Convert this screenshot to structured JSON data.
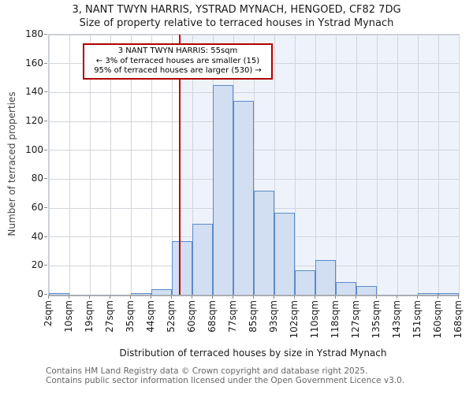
{
  "title": "3, NANT TWYN HARRIS, YSTRAD MYNACH, HENGOED, CF82 7DG",
  "subtitle": "Size of property relative to terraced houses in Ystrad Mynach",
  "annotation": {
    "line1": "3 NANT TWYN HARRIS: 55sqm",
    "line2": "← 3% of terraced houses are smaller (15)",
    "line3": "95% of terraced houses are larger (530) →"
  },
  "chart_data": {
    "type": "bar",
    "title": "3, NANT TWYN HARRIS, YSTRAD MYNACH, HENGOED, CF82 7DG",
    "subtitle": "Size of property relative to terraced houses in Ystrad Mynach",
    "xlabel": "Distribution of terraced houses by size in Ystrad Mynach",
    "ylabel": "Number of terraced properties",
    "bin_edges_sqm": [
      2,
      10,
      19,
      27,
      35,
      44,
      52,
      60,
      68,
      77,
      85,
      93,
      102,
      110,
      118,
      127,
      135,
      143,
      151,
      160,
      168
    ],
    "bin_edge_labels": [
      "2sqm",
      "10sqm",
      "19sqm",
      "27sqm",
      "35sqm",
      "44sqm",
      "52sqm",
      "60sqm",
      "68sqm",
      "77sqm",
      "85sqm",
      "93sqm",
      "102sqm",
      "110sqm",
      "118sqm",
      "127sqm",
      "135sqm",
      "143sqm",
      "151sqm",
      "160sqm",
      "168sqm"
    ],
    "values": [
      1,
      0,
      0,
      0,
      1,
      4,
      37,
      49,
      145,
      134,
      72,
      57,
      17,
      24,
      9,
      6,
      0,
      0,
      1,
      1
    ],
    "ylim": [
      0,
      180
    ],
    "ytick_step": 20,
    "grid": true,
    "marker_value_sqm": 55,
    "colors": {
      "bar_fill": "#d2def1",
      "bar_border": "#5b8bc8",
      "marker_line": "#c00000",
      "annotation_border": "#b00000",
      "shade_right_of_marker": "#eef3fb",
      "gridline": "#d2d5db"
    }
  },
  "footer": {
    "line1": "Contains HM Land Registry data © Crown copyright and database right 2025.",
    "line2": "Contains public sector information licensed under the Open Government Licence v3.0."
  }
}
